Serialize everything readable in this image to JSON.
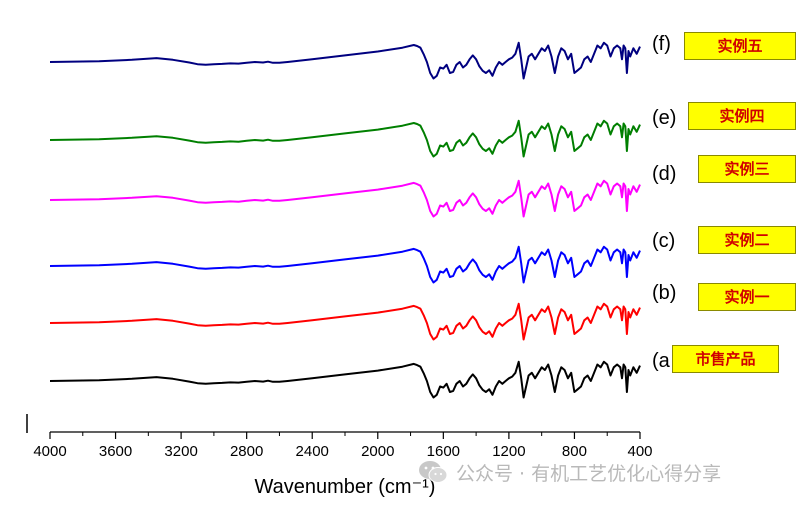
{
  "chart_data": {
    "type": "line",
    "title": "",
    "xlabel": "Wavenumber (cm⁻¹)",
    "ylabel": "",
    "x_reversed": true,
    "xlim": [
      4000,
      400
    ],
    "x_ticks": [
      "4000",
      "3600",
      "3200",
      "2800",
      "2400",
      "2000",
      "1600",
      "1200",
      "800",
      "400"
    ],
    "x_tick_values": [
      4000,
      3600,
      3200,
      2800,
      2400,
      2000,
      1600,
      1200,
      800,
      400
    ],
    "series": [
      {
        "id": "a",
        "name": "(a",
        "sample": "市售产品",
        "color": "#000000",
        "offset": 0
      },
      {
        "id": "b",
        "name": "(b)",
        "sample": "实例一",
        "color": "#ff0000",
        "offset": 1
      },
      {
        "id": "c",
        "name": "(c)",
        "sample": "实例二",
        "color": "#0000ff",
        "offset": 2
      },
      {
        "id": "d",
        "name": "(d)",
        "sample": "实例三",
        "color": "#ff00ff",
        "offset": 3
      },
      {
        "id": "e",
        "name": "(e)",
        "sample": "实例四",
        "color": "#008000",
        "offset": 4
      },
      {
        "id": "f",
        "name": "(f)",
        "sample": "实例五",
        "color": "#000080",
        "offset": 5
      }
    ],
    "spectrum_profile": {
      "units": "relative transmittance (baseline at 4000 = 0, higher = up)",
      "points": [
        [
          4000,
          0
        ],
        [
          3900,
          0.3
        ],
        [
          3700,
          1.5
        ],
        [
          3500,
          4
        ],
        [
          3350,
          7
        ],
        [
          3250,
          4
        ],
        [
          3150,
          -1
        ],
        [
          3100,
          -4
        ],
        [
          3050,
          -5
        ],
        [
          3000,
          -4
        ],
        [
          2950,
          -3.5
        ],
        [
          2900,
          -2.5
        ],
        [
          2850,
          -3
        ],
        [
          2800,
          -1.5
        ],
        [
          2750,
          0
        ],
        [
          2700,
          -1
        ],
        [
          2670,
          0.5
        ],
        [
          2640,
          -1.5
        ],
        [
          2600,
          -1.5
        ],
        [
          2550,
          0
        ],
        [
          2400,
          5
        ],
        [
          2200,
          12
        ],
        [
          2000,
          19
        ],
        [
          1850,
          26
        ],
        [
          1780,
          31
        ],
        [
          1760,
          29
        ],
        [
          1740,
          26
        ],
        [
          1720,
          14
        ],
        [
          1700,
          0
        ],
        [
          1680,
          -20
        ],
        [
          1660,
          -30
        ],
        [
          1640,
          -25
        ],
        [
          1620,
          -10
        ],
        [
          1600,
          -12
        ],
        [
          1580,
          -5
        ],
        [
          1560,
          -20
        ],
        [
          1540,
          -18
        ],
        [
          1520,
          -5
        ],
        [
          1500,
          0
        ],
        [
          1480,
          -10
        ],
        [
          1460,
          -5
        ],
        [
          1440,
          5
        ],
        [
          1420,
          12
        ],
        [
          1400,
          5
        ],
        [
          1380,
          -8
        ],
        [
          1360,
          -16
        ],
        [
          1340,
          -20
        ],
        [
          1320,
          -15
        ],
        [
          1300,
          -25
        ],
        [
          1280,
          -10
        ],
        [
          1260,
          0
        ],
        [
          1240,
          -5
        ],
        [
          1220,
          0
        ],
        [
          1200,
          5
        ],
        [
          1180,
          8
        ],
        [
          1160,
          15
        ],
        [
          1140,
          35
        ],
        [
          1125,
          5
        ],
        [
          1110,
          -30
        ],
        [
          1095,
          -10
        ],
        [
          1080,
          10
        ],
        [
          1060,
          15
        ],
        [
          1040,
          5
        ],
        [
          1020,
          15
        ],
        [
          1000,
          25
        ],
        [
          980,
          20
        ],
        [
          960,
          30
        ],
        [
          940,
          10
        ],
        [
          920,
          -20
        ],
        [
          900,
          10
        ],
        [
          880,
          25
        ],
        [
          860,
          20
        ],
        [
          840,
          5
        ],
        [
          820,
          15
        ],
        [
          800,
          -20
        ],
        [
          780,
          -15
        ],
        [
          760,
          -10
        ],
        [
          740,
          5
        ],
        [
          720,
          10
        ],
        [
          700,
          0
        ],
        [
          680,
          15
        ],
        [
          660,
          30
        ],
        [
          640,
          25
        ],
        [
          620,
          35
        ],
        [
          600,
          30
        ],
        [
          580,
          10
        ],
        [
          560,
          25
        ],
        [
          540,
          30
        ],
        [
          520,
          25
        ],
        [
          510,
          5
        ],
        [
          500,
          30
        ],
        [
          490,
          25
        ],
        [
          480,
          -20
        ],
        [
          470,
          20
        ],
        [
          460,
          10
        ],
        [
          440,
          25
        ],
        [
          420,
          15
        ],
        [
          400,
          28
        ]
      ]
    }
  },
  "watermark": "公众号 · 有机工艺优化心得分享"
}
